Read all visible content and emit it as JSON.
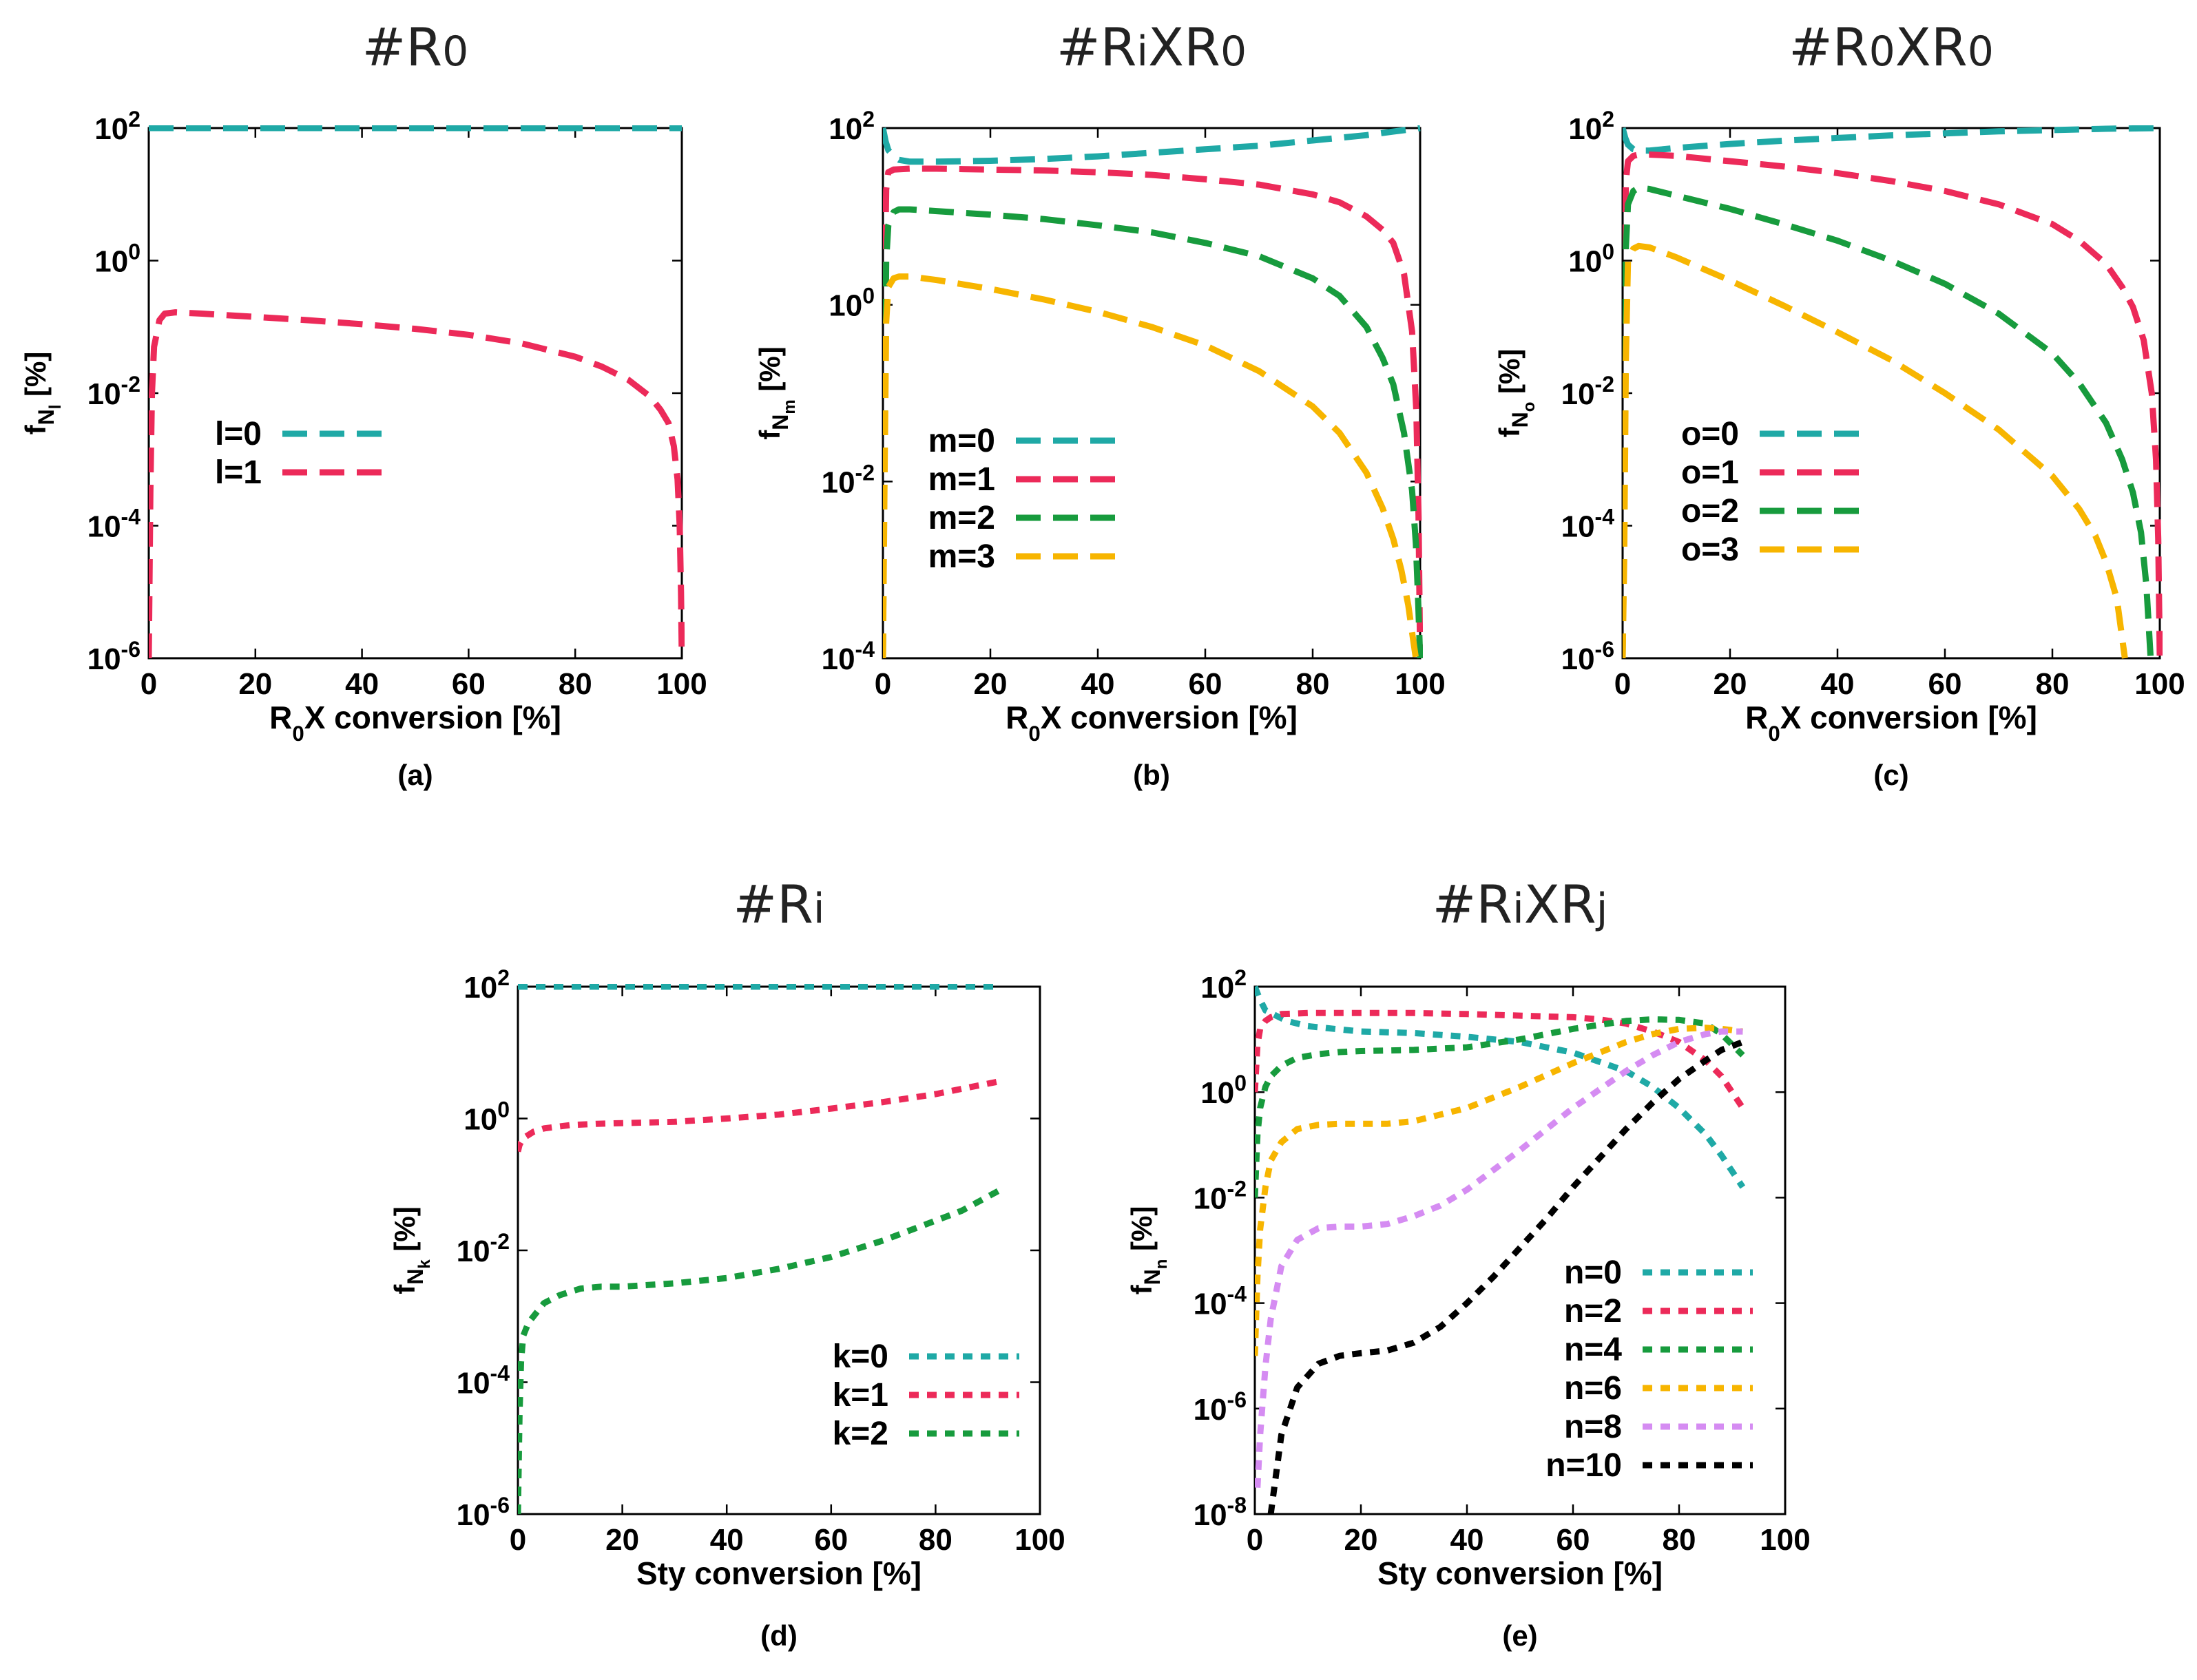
{
  "chart_data": [
    {
      "id": "a",
      "type": "line",
      "title": "#R0",
      "caption": "(a)",
      "xlabel": "R0X conversion [%]",
      "ylabel": "fNl [%]",
      "xlim": [
        0,
        100
      ],
      "ylim_exp": [
        -6,
        2
      ],
      "xticks": [
        0,
        20,
        40,
        60,
        80,
        100
      ],
      "yticks_exp": [
        -6,
        -4,
        -2,
        0,
        2
      ],
      "series": [
        {
          "name": "l=0",
          "color": "#1fa9a6",
          "x": [
            0,
            1,
            5,
            20,
            50,
            80,
            95,
            100
          ],
          "log10y": [
            2,
            2,
            2,
            2,
            2,
            2,
            2,
            2
          ]
        },
        {
          "name": "l=1",
          "color": "#ec2a59",
          "x": [
            0,
            0.3,
            0.6,
            1,
            2,
            3,
            5,
            10,
            20,
            30,
            40,
            50,
            60,
            70,
            80,
            85,
            90,
            94,
            96,
            97.5,
            98.5,
            99.2,
            99.6,
            99.85,
            100
          ],
          "log10y": [
            -6,
            -3.5,
            -2,
            -1.3,
            -0.9,
            -0.8,
            -0.78,
            -0.8,
            -0.85,
            -0.9,
            -0.96,
            -1.03,
            -1.12,
            -1.25,
            -1.45,
            -1.6,
            -1.8,
            -2.05,
            -2.25,
            -2.45,
            -2.8,
            -3.3,
            -4.0,
            -5.0,
            -6
          ]
        }
      ]
    },
    {
      "id": "b",
      "type": "line",
      "title": "#RiXR0",
      "caption": "(b)",
      "xlabel": "R0X conversion [%]",
      "ylabel": "fNm [%]",
      "xlim": [
        0,
        100
      ],
      "ylim_exp": [
        -4,
        2
      ],
      "xticks": [
        0,
        20,
        40,
        60,
        80,
        100
      ],
      "yticks_exp": [
        -4,
        -2,
        0,
        2
      ],
      "series": [
        {
          "name": "m=0",
          "color": "#1fa9a6",
          "x": [
            0,
            0.5,
            1,
            2,
            3,
            5,
            10,
            20,
            30,
            40,
            50,
            60,
            70,
            80,
            90,
            95,
            100
          ],
          "log10y": [
            2,
            1.85,
            1.75,
            1.68,
            1.64,
            1.62,
            1.62,
            1.63,
            1.65,
            1.68,
            1.72,
            1.76,
            1.8,
            1.86,
            1.92,
            1.96,
            2
          ]
        },
        {
          "name": "m=1",
          "color": "#ec2a59",
          "x": [
            0,
            0.3,
            0.6,
            1,
            2,
            5,
            10,
            20,
            30,
            40,
            50,
            60,
            70,
            80,
            85,
            90,
            93,
            95,
            97,
            98.5,
            99.3,
            99.7,
            100
          ],
          "log10y": [
            -4,
            0,
            1.3,
            1.5,
            1.53,
            1.54,
            1.54,
            1.53,
            1.52,
            1.5,
            1.47,
            1.42,
            1.36,
            1.25,
            1.16,
            1.0,
            0.85,
            0.7,
            0.35,
            -0.3,
            -1.2,
            -2.4,
            -4
          ]
        },
        {
          "name": "m=2",
          "color": "#179b3d",
          "x": [
            0,
            0.3,
            0.6,
            1,
            2,
            3,
            5,
            10,
            20,
            30,
            40,
            50,
            60,
            70,
            80,
            85,
            90,
            93,
            95,
            97,
            98.5,
            99.2,
            99.6,
            100
          ],
          "log10y": [
            -4,
            -1.5,
            0.5,
            0.9,
            1.05,
            1.08,
            1.08,
            1.06,
            1.02,
            0.97,
            0.9,
            0.82,
            0.7,
            0.55,
            0.3,
            0.1,
            -0.25,
            -0.6,
            -0.9,
            -1.45,
            -2.1,
            -2.7,
            -3.3,
            -4
          ]
        },
        {
          "name": "m=3",
          "color": "#f7b500",
          "x": [
            0,
            0.3,
            0.6,
            1,
            2,
            3,
            5,
            10,
            20,
            30,
            40,
            50,
            60,
            70,
            80,
            85,
            90,
            93,
            95,
            96.5,
            97.8,
            98.6,
            99.2
          ],
          "log10y": [
            -4,
            -2,
            -0.2,
            0.2,
            0.3,
            0.32,
            0.32,
            0.28,
            0.18,
            0.06,
            -0.08,
            -0.25,
            -0.46,
            -0.75,
            -1.15,
            -1.45,
            -1.9,
            -2.3,
            -2.65,
            -3.0,
            -3.4,
            -3.75,
            -4
          ]
        }
      ]
    },
    {
      "id": "c",
      "type": "line",
      "title": "#R0XR0",
      "caption": "(c)",
      "xlabel": "R0X conversion [%]",
      "ylabel": "fNo [%]",
      "xlim": [
        0,
        100
      ],
      "ylim_exp": [
        -6,
        2
      ],
      "xticks": [
        0,
        20,
        40,
        60,
        80,
        100
      ],
      "yticks_exp": [
        -6,
        -4,
        -2,
        0,
        2
      ],
      "series": [
        {
          "name": "o=0",
          "color": "#1fa9a6",
          "x": [
            0,
            0.5,
            1,
            2,
            3,
            5,
            10,
            20,
            30,
            40,
            50,
            60,
            70,
            80,
            90,
            100
          ],
          "log10y": [
            2,
            1.85,
            1.75,
            1.68,
            1.66,
            1.66,
            1.7,
            1.76,
            1.81,
            1.85,
            1.89,
            1.92,
            1.95,
            1.97,
            1.99,
            2
          ]
        },
        {
          "name": "o=1",
          "color": "#ec2a59",
          "x": [
            0,
            0.3,
            0.6,
            1,
            2,
            3,
            5,
            10,
            20,
            30,
            40,
            50,
            60,
            70,
            80,
            85,
            90,
            93,
            95,
            97,
            98.5,
            99.3,
            99.7,
            100
          ],
          "log10y": [
            -6,
            -1,
            1.2,
            1.5,
            1.58,
            1.6,
            1.6,
            1.58,
            1.5,
            1.42,
            1.32,
            1.2,
            1.05,
            0.85,
            0.55,
            0.3,
            -0.05,
            -0.4,
            -0.7,
            -1.2,
            -2.0,
            -3.0,
            -4.2,
            -6
          ]
        },
        {
          "name": "o=2",
          "color": "#179b3d",
          "x": [
            0,
            0.3,
            0.6,
            1,
            2,
            3,
            5,
            10,
            20,
            30,
            40,
            50,
            60,
            70,
            80,
            85,
            90,
            93,
            95,
            96.5,
            97.5,
            98.3
          ],
          "log10y": [
            -6,
            -3,
            0.2,
            0.85,
            1.05,
            1.1,
            1.08,
            0.98,
            0.78,
            0.55,
            0.3,
            0.0,
            -0.35,
            -0.8,
            -1.4,
            -1.85,
            -2.45,
            -3.0,
            -3.5,
            -4.1,
            -4.9,
            -6
          ]
        },
        {
          "name": "o=3",
          "color": "#f7b500",
          "x": [
            0,
            0.3,
            0.6,
            1,
            2,
            3,
            5,
            10,
            20,
            30,
            40,
            50,
            60,
            70,
            80,
            85,
            88,
            90,
            92,
            93.5
          ],
          "log10y": [
            -6,
            -4.5,
            -1.5,
            0,
            0.18,
            0.22,
            0.2,
            0.05,
            -0.3,
            -0.68,
            -1.08,
            -1.5,
            -2.0,
            -2.55,
            -3.25,
            -3.75,
            -4.15,
            -4.55,
            -5.1,
            -6
          ]
        }
      ]
    },
    {
      "id": "d",
      "type": "line",
      "title": "#Ri",
      "caption": "(d)",
      "xlabel": "Sty conversion [%]",
      "ylabel": "fNk [%]",
      "xlim": [
        0,
        100
      ],
      "ylim_exp": [
        -6,
        2
      ],
      "xticks": [
        0,
        20,
        40,
        60,
        80,
        100
      ],
      "yticks_exp": [
        -6,
        -4,
        -2,
        0,
        2
      ],
      "series": [
        {
          "name": "k=0",
          "color": "#1fa9a6",
          "x": [
            0,
            5,
            20,
            40,
            60,
            80,
            92
          ],
          "log10y": [
            2,
            2,
            2,
            2,
            2,
            2,
            2
          ]
        },
        {
          "name": "k=1",
          "color": "#ec2a59",
          "x": [
            0,
            0.3,
            1,
            2,
            3,
            5,
            10,
            15,
            20,
            30,
            40,
            50,
            60,
            70,
            80,
            85,
            92
          ],
          "log10y": [
            -0.5,
            -0.4,
            -0.3,
            -0.25,
            -0.2,
            -0.15,
            -0.1,
            -0.08,
            -0.07,
            -0.05,
            0.0,
            0.06,
            0.15,
            0.25,
            0.37,
            0.45,
            0.56
          ]
        },
        {
          "name": "k=2",
          "color": "#179b3d",
          "x": [
            0,
            0.3,
            0.6,
            1,
            2,
            3,
            5,
            8,
            12,
            16,
            20,
            30,
            40,
            50,
            60,
            70,
            80,
            85,
            92
          ],
          "log10y": [
            -6,
            -4.5,
            -3.7,
            -3.3,
            -3.1,
            -3.0,
            -2.8,
            -2.68,
            -2.58,
            -2.55,
            -2.55,
            -2.5,
            -2.42,
            -2.28,
            -2.1,
            -1.85,
            -1.55,
            -1.4,
            -1.1
          ]
        }
      ]
    },
    {
      "id": "e",
      "type": "line",
      "title": "#RiXRj",
      "caption": "(e)",
      "xlabel": "Sty conversion [%]",
      "ylabel": "fNn [%]",
      "xlim": [
        0,
        100
      ],
      "ylim_exp": [
        -8,
        2
      ],
      "xticks": [
        0,
        20,
        40,
        60,
        80,
        100
      ],
      "yticks_exp": [
        -8,
        -6,
        -4,
        -2,
        0,
        2
      ],
      "series": [
        {
          "name": "n=0",
          "color": "#1fa9a6",
          "x": [
            0,
            1,
            2,
            4,
            6,
            10,
            15,
            20,
            30,
            40,
            50,
            60,
            70,
            75,
            80,
            85,
            88,
            92
          ],
          "log10y": [
            2,
            1.75,
            1.55,
            1.45,
            1.35,
            1.25,
            1.2,
            1.15,
            1.12,
            1.05,
            0.95,
            0.75,
            0.4,
            0.1,
            -0.3,
            -0.8,
            -1.2,
            -1.8
          ]
        },
        {
          "name": "n=2",
          "color": "#ec2a59",
          "x": [
            0,
            0.5,
            1,
            2,
            3,
            5,
            10,
            20,
            30,
            40,
            50,
            60,
            65,
            70,
            75,
            80,
            85,
            88,
            92
          ],
          "log10y": [
            0,
            0.9,
            1.2,
            1.35,
            1.42,
            1.48,
            1.5,
            1.5,
            1.5,
            1.48,
            1.45,
            1.42,
            1.38,
            1.3,
            1.15,
            0.95,
            0.6,
            0.3,
            -0.3
          ]
        },
        {
          "name": "n=4",
          "color": "#179b3d",
          "x": [
            0,
            0.5,
            1,
            2,
            3,
            5,
            8,
            12,
            16,
            20,
            30,
            40,
            50,
            60,
            70,
            75,
            80,
            85,
            88,
            92
          ],
          "log10y": [
            -2,
            -0.8,
            -0.3,
            0.1,
            0.3,
            0.5,
            0.65,
            0.72,
            0.76,
            0.78,
            0.8,
            0.85,
            1.0,
            1.2,
            1.35,
            1.38,
            1.37,
            1.3,
            1.1,
            0.7
          ]
        },
        {
          "name": "n=6",
          "color": "#f7b500",
          "x": [
            0,
            0.5,
            1,
            2,
            3,
            5,
            8,
            12,
            16,
            20,
            25,
            30,
            40,
            50,
            60,
            70,
            75,
            80,
            85,
            88,
            92
          ],
          "log10y": [
            -5,
            -3.5,
            -2.6,
            -1.8,
            -1.3,
            -0.95,
            -0.7,
            -0.62,
            -0.6,
            -0.6,
            -0.6,
            -0.55,
            -0.3,
            0.1,
            0.55,
            0.95,
            1.1,
            1.2,
            1.22,
            1.2,
            1.15
          ]
        },
        {
          "name": "n=8",
          "color": "#d58cf2",
          "x": [
            0.5,
            1,
            2,
            3,
            5,
            8,
            12,
            16,
            20,
            25,
            30,
            35,
            40,
            50,
            60,
            70,
            75,
            80,
            85,
            88,
            92
          ],
          "log10y": [
            -7.5,
            -6.5,
            -5.2,
            -4.3,
            -3.3,
            -2.8,
            -2.58,
            -2.55,
            -2.55,
            -2.5,
            -2.35,
            -2.15,
            -1.85,
            -1.1,
            -0.3,
            0.4,
            0.7,
            0.95,
            1.1,
            1.15,
            1.15
          ]
        },
        {
          "name": "n=10",
          "color": "#000000",
          "x": [
            3,
            5,
            8,
            12,
            16,
            20,
            25,
            30,
            35,
            40,
            45,
            50,
            55,
            60,
            65,
            70,
            75,
            80,
            85,
            88,
            92
          ],
          "log10y": [
            -8,
            -6.5,
            -5.6,
            -5.15,
            -5.0,
            -4.95,
            -4.9,
            -4.75,
            -4.45,
            -4.0,
            -3.5,
            -2.95,
            -2.4,
            -1.8,
            -1.25,
            -0.7,
            -0.2,
            0.25,
            0.6,
            0.8,
            0.95
          ]
        }
      ]
    }
  ]
}
